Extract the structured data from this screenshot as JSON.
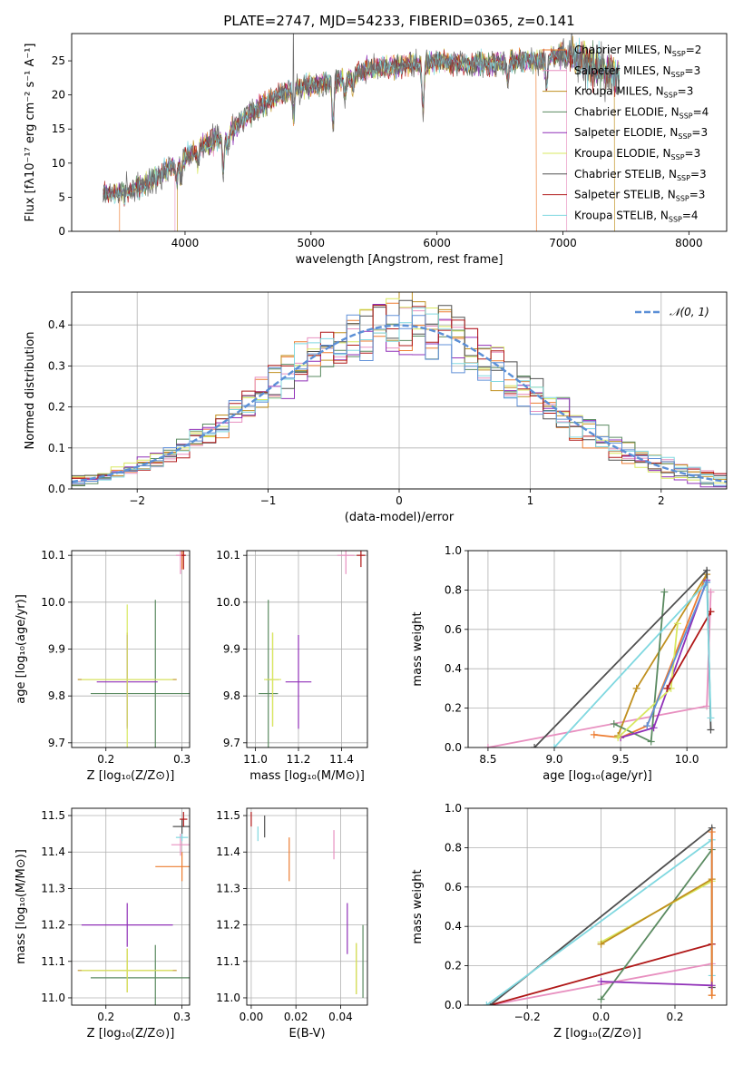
{
  "figure": {
    "title": "PLATE=2747, MJD=54233, FIBERID=0365, z=0.141"
  },
  "legend_entries": [
    {
      "label": "Chabrier MILES, N",
      "sub": "SSP",
      "suffix": "=2",
      "color": "#ed7d31"
    },
    {
      "label": "Salpeter MILES, N",
      "sub": "SSP",
      "suffix": "=3",
      "color": "#e890c0"
    },
    {
      "label": "Kroupa MILES, N",
      "sub": "SSP",
      "suffix": "=3",
      "color": "#c09020"
    },
    {
      "label": "Chabrier ELODIE, N",
      "sub": "SSP",
      "suffix": "=4",
      "color": "#5a8a60"
    },
    {
      "label": "Salpeter ELODIE, N",
      "sub": "SSP",
      "suffix": "=3",
      "color": "#9030b8"
    },
    {
      "label": "Kroupa ELODIE, N",
      "sub": "SSP",
      "suffix": "=3",
      "color": "#d8e860"
    },
    {
      "label": "Chabrier STELIB, N",
      "sub": "SSP",
      "suffix": "=3",
      "color": "#505050"
    },
    {
      "label": "Salpeter STELIB, N",
      "sub": "SSP",
      "suffix": "=3",
      "color": "#b01818"
    },
    {
      "label": "Kroupa STELIB, N",
      "sub": "SSP",
      "suffix": "=4",
      "color": "#80d8e0"
    }
  ],
  "chart_data": [
    {
      "id": "spectrum",
      "type": "line",
      "title": "PLATE=2747, MJD=54233, FIBERID=0365, z=0.141",
      "xlabel": "wavelength [Angstrom, rest frame]",
      "ylabel": "Flux [fλ10⁻¹⁷ erg cm⁻² s⁻¹ A⁻¹]",
      "xlim": [
        3100,
        8300
      ],
      "ylim": [
        0,
        29
      ],
      "xticks": [
        4000,
        5000,
        6000,
        7000,
        8000
      ],
      "yticks": [
        0,
        5,
        10,
        15,
        20,
        25
      ],
      "grid": false,
      "legend": "top-right",
      "continuum": {
        "x": [
          3350,
          3500,
          3700,
          3850,
          3950,
          4050,
          4200,
          4350,
          4500,
          4700,
          4850,
          5000,
          5200,
          5400,
          5600,
          5800,
          6000,
          6200,
          6400,
          6600,
          6800,
          7000,
          7200,
          7400
        ],
        "y": [
          5.5,
          5.5,
          7.0,
          9.0,
          10.5,
          11.5,
          13.0,
          14.5,
          17.0,
          19.5,
          21.0,
          21.5,
          22.0,
          23.5,
          24.0,
          24.5,
          25.0,
          24.5,
          24.5,
          25.0,
          25.0,
          26.0,
          24.5,
          23.0
        ]
      },
      "model_cutoffs": {
        "low": [
          3480,
          3920,
          3940
        ],
        "high": [
          6790,
          7030,
          7410
        ]
      }
    },
    {
      "id": "residuals",
      "type": "line",
      "xlabel": "(data-model)/error",
      "ylabel": "Normed distribution",
      "xlim": [
        -2.5,
        2.5
      ],
      "ylim": [
        0,
        0.48
      ],
      "xticks": [
        -2,
        -1,
        0,
        1,
        2
      ],
      "yticks": [
        0.0,
        0.1,
        0.2,
        0.3,
        0.4
      ],
      "grid": true,
      "legend": "top-right",
      "legend_label": "𝒩(0, 1)",
      "normal_curve": {
        "mean": 0,
        "sigma": 1
      }
    },
    {
      "id": "age-vs-z",
      "type": "scatter",
      "xlabel": "Z [log₁₀(Z/Z⊙)]",
      "ylabel": "age  [log₁₀(age/yr)]",
      "xlim": [
        0.155,
        0.31
      ],
      "ylim": [
        9.69,
        10.11
      ],
      "xticks": [
        0.2,
        0.3
      ],
      "yticks": [
        9.7,
        9.8,
        9.9,
        10.0,
        10.1
      ],
      "grid": true,
      "points": [
        {
          "x": 0.3,
          "y": 10.1,
          "xerr": 0.003,
          "yerr": 0.03,
          "color": "#ed7d31"
        },
        {
          "x": 0.297,
          "y": 10.12,
          "xerr": 0.005,
          "yerr": 0.01,
          "color": "#ed7d31"
        },
        {
          "x": 0.297,
          "y": 10.14,
          "xerr": 0.03,
          "yerr": 0.005,
          "color": "#ed7d31"
        },
        {
          "x": 0.298,
          "y": 10.1,
          "xerr": 0.006,
          "yerr": 0.04,
          "color": "#e890c0"
        },
        {
          "x": 0.228,
          "y": 9.835,
          "xerr": 0.065,
          "yerr": 0.1,
          "color": "#c09020"
        },
        {
          "x": 0.265,
          "y": 9.805,
          "xerr": 0.085,
          "yerr": 0.2,
          "color": "#5a8a60"
        },
        {
          "x": 0.228,
          "y": 9.83,
          "xerr": 0.04,
          "yerr": 0.1,
          "color": "#9030b8"
        },
        {
          "x": 0.228,
          "y": 9.835,
          "xerr": 0.06,
          "yerr": 0.16,
          "color": "#d8e860"
        },
        {
          "x": 0.302,
          "y": 10.145,
          "xerr": 0.012,
          "yerr": 0.01,
          "color": "#505050"
        },
        {
          "x": 0.302,
          "y": 10.1,
          "xerr": 0.003,
          "yerr": 0.03,
          "color": "#b01818"
        },
        {
          "x": 0.3,
          "y": 10.145,
          "xerr": 0.012,
          "yerr": 0.01,
          "color": "#80d8e0"
        }
      ]
    },
    {
      "id": "age-vs-mass",
      "type": "scatter",
      "xlabel": "mass [log₁₀(M/M⊙)]",
      "ylabel": "",
      "xlim": [
        10.96,
        11.52
      ],
      "ylim": [
        9.69,
        10.11
      ],
      "xticks": [
        11.0,
        11.2,
        11.4
      ],
      "yticks": [
        9.7,
        9.8,
        9.9,
        10.0,
        10.1
      ],
      "grid": true,
      "points": [
        {
          "x": 11.35,
          "y": 10.145,
          "xerr": 0.04,
          "yerr": 0.03,
          "color": "#ed7d31"
        },
        {
          "x": 11.42,
          "y": 10.1,
          "xerr": 0.04,
          "yerr": 0.04,
          "color": "#e890c0"
        },
        {
          "x": 11.08,
          "y": 9.835,
          "xerr": 0.03,
          "yerr": 0.1,
          "color": "#c09020"
        },
        {
          "x": 11.06,
          "y": 9.805,
          "xerr": 0.045,
          "yerr": 0.2,
          "color": "#5a8a60"
        },
        {
          "x": 11.2,
          "y": 9.83,
          "xerr": 0.06,
          "yerr": 0.1,
          "color": "#9030b8"
        },
        {
          "x": 11.08,
          "y": 9.835,
          "xerr": 0.04,
          "yerr": 0.1,
          "color": "#d8e860"
        },
        {
          "x": 11.47,
          "y": 10.145,
          "xerr": 0.03,
          "yerr": 0.01,
          "color": "#505050"
        },
        {
          "x": 11.49,
          "y": 10.1,
          "xerr": 0.02,
          "yerr": 0.025,
          "color": "#b01818"
        },
        {
          "x": 11.44,
          "y": 10.145,
          "xerr": 0.02,
          "yerr": 0.01,
          "color": "#80d8e0"
        }
      ]
    },
    {
      "id": "mass-weight-vs-age",
      "type": "line",
      "xlabel": "age  [log₁₀(age/yr)]",
      "ylabel": "mass weight",
      "xlim": [
        8.35,
        10.3
      ],
      "ylim": [
        0,
        1.0
      ],
      "xticks": [
        8.5,
        9.0,
        9.5,
        10.0
      ],
      "yticks": [
        0.0,
        0.2,
        0.4,
        0.6,
        0.8,
        1.0
      ],
      "grid": true,
      "series": [
        {
          "color": "#e890c0",
          "x": [
            8.5,
            10.15,
            10.18
          ],
          "y": [
            0.0,
            0.21,
            0.79
          ]
        },
        {
          "color": "#ed7d31",
          "x": [
            9.3,
            9.5,
            9.7,
            10.15
          ],
          "y": [
            0.065,
            0.05,
            0.11,
            0.88
          ]
        },
        {
          "color": "#c09020",
          "x": [
            9.48,
            9.62,
            10.15
          ],
          "y": [
            0.06,
            0.3,
            0.88
          ]
        },
        {
          "color": "#5a8a60",
          "x": [
            9.45,
            9.73,
            9.83
          ],
          "y": [
            0.12,
            0.03,
            0.79
          ]
        },
        {
          "color": "#9030b8",
          "x": [
            9.5,
            9.75,
            10.15
          ],
          "y": [
            0.05,
            0.1,
            0.85
          ]
        },
        {
          "color": "#d8e860",
          "x": [
            9.48,
            9.88,
            9.93
          ],
          "y": [
            0.05,
            0.3,
            0.63
          ]
        },
        {
          "color": "#505050",
          "x": [
            8.85,
            10.15,
            10.18
          ],
          "y": [
            0.0,
            0.9,
            0.09
          ]
        },
        {
          "color": "#b01818",
          "x": [
            9.85,
            10.18
          ],
          "y": [
            0.3,
            0.69
          ]
        },
        {
          "color": "#80d8e0",
          "x": [
            9.0,
            10.15,
            10.18
          ],
          "y": [
            0.0,
            0.84,
            0.15
          ]
        },
        {
          "color": "#6090d8",
          "x": [
            9.7,
            10.15
          ],
          "y": [
            0.11,
            0.84
          ]
        }
      ]
    },
    {
      "id": "mass-vs-z",
      "type": "scatter",
      "xlabel": "Z [log₁₀(Z/Z⊙)]",
      "ylabel": "mass [log₁₀(M/M⊙)]",
      "xlim": [
        0.155,
        0.31
      ],
      "ylim": [
        10.98,
        11.52
      ],
      "xticks": [
        0.2,
        0.3
      ],
      "yticks": [
        11.0,
        11.1,
        11.2,
        11.3,
        11.4,
        11.5
      ],
      "grid": true,
      "points": [
        {
          "x": 0.3,
          "y": 11.36,
          "xerr": 0.035,
          "yerr": 0.04,
          "color": "#ed7d31"
        },
        {
          "x": 0.298,
          "y": 11.42,
          "xerr": 0.012,
          "yerr": 0.03,
          "color": "#e890c0"
        },
        {
          "x": 0.228,
          "y": 11.075,
          "xerr": 0.065,
          "yerr": 0.06,
          "color": "#c09020"
        },
        {
          "x": 0.265,
          "y": 11.055,
          "xerr": 0.085,
          "yerr": 0.09,
          "color": "#5a8a60"
        },
        {
          "x": 0.228,
          "y": 11.2,
          "xerr": 0.06,
          "yerr": 0.06,
          "color": "#9030b8"
        },
        {
          "x": 0.228,
          "y": 11.075,
          "xerr": 0.06,
          "yerr": 0.06,
          "color": "#d8e860"
        },
        {
          "x": 0.3,
          "y": 11.47,
          "xerr": 0.012,
          "yerr": 0.02,
          "color": "#505050"
        },
        {
          "x": 0.302,
          "y": 11.49,
          "xerr": 0.005,
          "yerr": 0.02,
          "color": "#b01818"
        },
        {
          "x": 0.3,
          "y": 11.44,
          "xerr": 0.008,
          "yerr": 0.01,
          "color": "#80d8e0"
        }
      ]
    },
    {
      "id": "mass-vs-ebv",
      "type": "scatter",
      "xlabel": "E(B-V)",
      "ylabel": "",
      "xlim": [
        -0.002,
        0.052
      ],
      "ylim": [
        10.98,
        11.52
      ],
      "xticks": [
        0.0,
        0.02,
        0.04
      ],
      "yticks": [
        11.0,
        11.1,
        11.2,
        11.3,
        11.4,
        11.5
      ],
      "grid": true,
      "points": [
        {
          "x": 0.017,
          "y": 11.38,
          "xerr": 0,
          "yerr": 0.06,
          "color": "#ed7d31"
        },
        {
          "x": 0.037,
          "y": 11.42,
          "xerr": 0,
          "yerr": 0.04,
          "color": "#e890c0"
        },
        {
          "x": 0.047,
          "y": 11.08,
          "xerr": 0,
          "yerr": 0.07,
          "color": "#c09020"
        },
        {
          "x": 0.05,
          "y": 11.1,
          "xerr": 0,
          "yerr": 0.1,
          "color": "#5a8a60"
        },
        {
          "x": 0.043,
          "y": 11.19,
          "xerr": 0,
          "yerr": 0.07,
          "color": "#9030b8"
        },
        {
          "x": 0.047,
          "y": 11.08,
          "xerr": 0,
          "yerr": 0.07,
          "color": "#d8e860"
        },
        {
          "x": 0.006,
          "y": 11.47,
          "xerr": 0,
          "yerr": 0.03,
          "color": "#505050"
        },
        {
          "x": 0.0,
          "y": 11.49,
          "xerr": 0,
          "yerr": 0.02,
          "color": "#b01818"
        },
        {
          "x": 0.003,
          "y": 11.45,
          "xerr": 0,
          "yerr": 0.02,
          "color": "#80d8e0"
        }
      ]
    },
    {
      "id": "mass-weight-vs-z",
      "type": "line",
      "xlabel": "Z [log₁₀(Z/Z⊙)]",
      "ylabel": "mass weight",
      "xlim": [
        -0.36,
        0.34
      ],
      "ylim": [
        0,
        1.0
      ],
      "xticks": [
        -0.2,
        0.0,
        0.2
      ],
      "yticks": [
        0.0,
        0.2,
        0.4,
        0.6,
        0.8,
        1.0
      ],
      "grid": true,
      "series": [
        {
          "color": "#e890c0",
          "x": [
            -0.3,
            0.3
          ],
          "y": [
            0.0,
            0.21
          ]
        },
        {
          "color": "#b01818",
          "x": [
            -0.3,
            0.3
          ],
          "y": [
            0.0,
            0.31
          ]
        },
        {
          "color": "#505050",
          "x": [
            -0.3,
            0.3,
            0.3
          ],
          "y": [
            0.0,
            0.9,
            0.09
          ]
        },
        {
          "color": "#80d8e0",
          "x": [
            -0.31,
            0.3,
            0.3
          ],
          "y": [
            0.0,
            0.84,
            0.15
          ]
        },
        {
          "color": "#5a8a60",
          "x": [
            0.0,
            0.3
          ],
          "y": [
            0.03,
            0.79
          ]
        },
        {
          "color": "#d8e860",
          "x": [
            0.0,
            0.3
          ],
          "y": [
            0.32,
            0.63
          ]
        },
        {
          "color": "#c09020",
          "x": [
            0.0,
            0.3,
            0.3
          ],
          "y": [
            0.31,
            0.64,
            0.05
          ]
        },
        {
          "color": "#ed7d31",
          "x": [
            0.3,
            0.3
          ],
          "y": [
            0.05,
            0.88
          ]
        },
        {
          "color": "#9030b8",
          "x": [
            0.0,
            0.3
          ],
          "y": [
            0.12,
            0.1
          ]
        }
      ]
    }
  ]
}
